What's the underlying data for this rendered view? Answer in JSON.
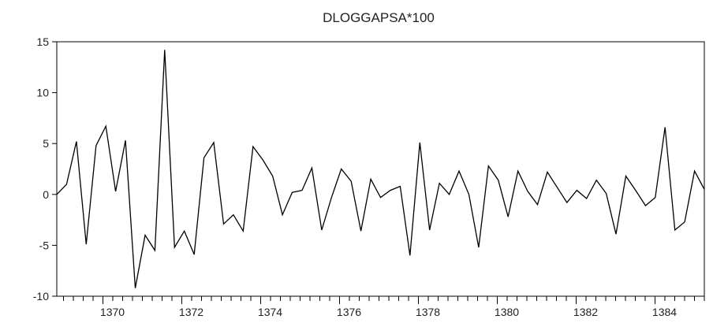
{
  "chart_data": {
    "type": "line",
    "title": "DLOGGAPSA*100",
    "xlabel": "",
    "ylabel": "",
    "ylim": [
      -10,
      15
    ],
    "xlim": [
      1368.83,
      1385.25
    ],
    "yticks": [
      -10,
      -5,
      0,
      5,
      10,
      15
    ],
    "xticks": [
      1370,
      1372,
      1374,
      1376,
      1378,
      1380,
      1382,
      1384
    ],
    "grid": false,
    "legend": "none",
    "line_color": "#000000",
    "series": [
      {
        "values": [
          0.0,
          1.0,
          5.2,
          -4.9,
          4.8,
          6.7,
          0.3,
          5.3,
          -9.2,
          -4.0,
          -5.5,
          14.2,
          -5.2,
          -3.6,
          -5.9,
          3.6,
          5.1,
          -2.9,
          -2.0,
          -3.6,
          4.7,
          3.4,
          1.8,
          -2.0,
          0.2,
          0.4,
          2.6,
          -3.5,
          -0.3,
          2.5,
          1.3,
          -3.6,
          1.5,
          -0.3,
          0.4,
          0.8,
          -6.0,
          5.1,
          -3.5,
          1.1,
          0.0,
          2.3,
          0.0,
          -5.2,
          2.8,
          1.4,
          -2.2,
          2.3,
          0.3,
          -1.0,
          2.2,
          0.7,
          -0.8,
          0.4,
          -0.4,
          1.4,
          0.1,
          -3.9,
          1.8,
          0.4,
          -1.1,
          -0.3,
          6.6,
          -3.5,
          -2.7,
          2.3,
          0.5
        ]
      }
    ]
  }
}
